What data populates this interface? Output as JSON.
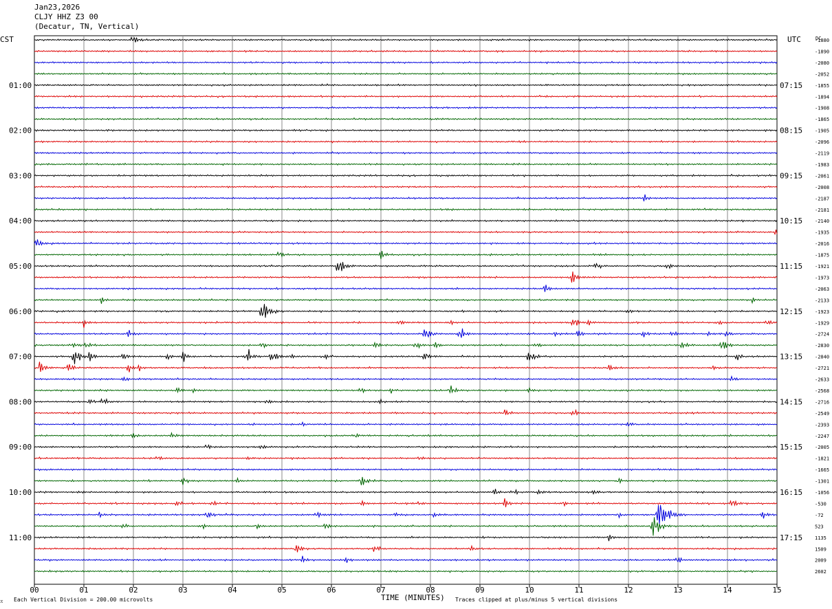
{
  "header": {
    "date": "Jan23,2026",
    "station": "CLJY HHZ Z3 00",
    "location": "(Decatur, TN, Vertical)"
  },
  "left_tz": "CST",
  "right_tz": "UTC",
  "dc_label": "DC",
  "footer": {
    "scale_note": "Each Vertical Division =  200.00 microvolts",
    "xlabel": "TIME (MINUTES)",
    "clip_note": "Traces clipped at plus/minus 5 vertical divisions"
  },
  "colors": {
    "trace": [
      "#000000",
      "#dd0000",
      "#0000dd",
      "#006600"
    ],
    "grid": "#888888"
  },
  "chart_data": {
    "type": "line",
    "title": "CLJY HHZ Z3 00",
    "xlabel": "TIME (MINUTES)",
    "xlim": [
      0,
      15
    ],
    "x_ticks": [
      "00",
      "01",
      "02",
      "03",
      "04",
      "05",
      "06",
      "07",
      "08",
      "09",
      "10",
      "11",
      "12",
      "13",
      "14",
      "15"
    ],
    "left_hour_labels": [
      "01:00",
      "02:00",
      "03:00",
      "04:00",
      "05:00",
      "06:00",
      "07:00",
      "08:00",
      "09:00",
      "10:00",
      "11:00"
    ],
    "right_hour_labels": [
      "07:15",
      "08:15",
      "09:15",
      "10:15",
      "11:15",
      "12:15",
      "13:15",
      "14:15",
      "15:15",
      "16:15",
      "17:15"
    ],
    "dc_offsets": [
      -1880,
      -1890,
      -2080,
      -2052,
      -1855,
      -1894,
      -1908,
      -1865,
      -1905,
      -2096,
      -2119,
      -1983,
      -2061,
      -2008,
      -2187,
      -2181,
      -2140,
      -1935,
      -2016,
      -1875,
      -1921,
      -1973,
      -2063,
      -2133,
      -1923,
      -1929,
      -2724,
      -2830,
      -2840,
      -2721,
      -2633,
      -2568,
      -2716,
      -2549,
      -2393,
      -2247,
      -2005,
      -1821,
      -1665,
      -1301,
      -1056,
      -530,
      -72,
      523,
      1135,
      1509,
      2009,
      2602
    ],
    "events": [
      [
        [
          2.0,
          0.5
        ]
      ],
      [],
      [],
      [],
      [],
      [],
      [],
      [],
      [],
      [],
      [],
      [],
      [],
      [],
      [
        [
          12.3,
          0.4
        ]
      ],
      [],
      [],
      [
        [
          15.0,
          0.5
        ]
      ],
      [
        [
          0.05,
          0.6
        ]
      ],
      [
        [
          4.95,
          0.4
        ],
        [
          7.0,
          0.5
        ]
      ],
      [
        [
          6.15,
          1.0
        ],
        [
          11.35,
          0.4
        ],
        [
          12.8,
          0.4
        ]
      ],
      [
        [
          10.85,
          0.8
        ]
      ],
      [
        [
          10.3,
          0.6
        ]
      ],
      [
        [
          1.35,
          0.4
        ],
        [
          14.5,
          0.3
        ]
      ],
      [
        [
          4.6,
          1.2
        ],
        [
          12.0,
          0.3
        ]
      ],
      [
        [
          1.0,
          0.4
        ],
        [
          7.4,
          0.4
        ],
        [
          8.4,
          0.3
        ],
        [
          10.9,
          0.5
        ],
        [
          11.2,
          0.4
        ],
        [
          13.8,
          0.3
        ],
        [
          14.8,
          0.4
        ]
      ],
      [
        [
          1.9,
          0.5
        ],
        [
          7.9,
          0.8
        ],
        [
          8.6,
          0.7
        ],
        [
          10.5,
          0.3
        ],
        [
          11.0,
          0.4
        ],
        [
          12.3,
          0.4
        ],
        [
          12.9,
          0.4
        ],
        [
          13.6,
          0.3
        ],
        [
          14.0,
          0.4
        ]
      ],
      [
        [
          0.8,
          0.3
        ],
        [
          1.05,
          0.4
        ],
        [
          4.6,
          0.4
        ],
        [
          6.9,
          0.4
        ],
        [
          7.7,
          0.5
        ],
        [
          8.1,
          0.4
        ],
        [
          10.15,
          0.3
        ],
        [
          13.1,
          0.6
        ],
        [
          13.9,
          0.7
        ]
      ],
      [
        [
          0.8,
          1.0
        ],
        [
          1.1,
          0.6
        ],
        [
          1.8,
          0.6
        ],
        [
          2.7,
          0.4
        ],
        [
          3.0,
          0.6
        ],
        [
          4.3,
          0.8
        ],
        [
          4.8,
          0.8
        ],
        [
          5.2,
          0.3
        ],
        [
          5.9,
          0.3
        ],
        [
          7.9,
          0.5
        ],
        [
          10.0,
          0.8
        ],
        [
          14.2,
          0.4
        ]
      ],
      [
        [
          0.1,
          0.8
        ],
        [
          0.7,
          0.5
        ],
        [
          1.9,
          0.5
        ],
        [
          2.1,
          0.3
        ],
        [
          11.6,
          0.4
        ],
        [
          13.7,
          0.3
        ]
      ],
      [
        [
          1.8,
          0.4
        ],
        [
          14.1,
          0.4
        ]
      ],
      [
        [
          2.9,
          0.4
        ],
        [
          3.2,
          0.3
        ],
        [
          6.6,
          0.3
        ],
        [
          7.2,
          0.3
        ],
        [
          8.4,
          0.6
        ],
        [
          10.0,
          0.3
        ]
      ],
      [
        [
          1.1,
          0.4
        ],
        [
          1.4,
          0.5
        ],
        [
          4.7,
          0.3
        ],
        [
          7.0,
          0.3
        ]
      ],
      [
        [
          9.5,
          0.4
        ],
        [
          10.9,
          0.4
        ]
      ],
      [
        [
          5.4,
          0.3
        ],
        [
          12.0,
          0.3
        ]
      ],
      [
        [
          2.0,
          0.3
        ],
        [
          2.8,
          0.4
        ],
        [
          6.5,
          0.2
        ]
      ],
      [
        [
          3.5,
          0.3
        ],
        [
          4.6,
          0.3
        ]
      ],
      [
        [
          2.5,
          0.3
        ],
        [
          4.3,
          0.2
        ],
        [
          7.8,
          0.3
        ]
      ],
      [],
      [
        [
          3.0,
          0.5
        ],
        [
          4.1,
          0.3
        ],
        [
          6.6,
          0.8
        ],
        [
          11.8,
          0.3
        ]
      ],
      [
        [
          9.3,
          0.5
        ],
        [
          9.7,
          0.3
        ],
        [
          10.2,
          0.4
        ],
        [
          11.3,
          0.3
        ]
      ],
      [
        [
          2.9,
          0.3
        ],
        [
          3.6,
          0.3
        ],
        [
          6.6,
          0.4
        ],
        [
          7.8,
          0.3
        ],
        [
          9.5,
          0.5
        ],
        [
          10.7,
          0.3
        ],
        [
          14.1,
          0.5
        ]
      ],
      [
        [
          1.3,
          0.4
        ],
        [
          3.5,
          0.5
        ],
        [
          5.7,
          0.5
        ],
        [
          7.3,
          0.3
        ],
        [
          8.1,
          0.3
        ],
        [
          11.8,
          0.3
        ],
        [
          12.6,
          2.0
        ],
        [
          14.7,
          0.5
        ]
      ],
      [
        [
          1.8,
          0.3
        ],
        [
          3.4,
          0.3
        ],
        [
          4.5,
          0.3
        ],
        [
          5.9,
          0.4
        ],
        [
          12.5,
          1.2
        ]
      ],
      [
        [
          11.6,
          0.4
        ]
      ],
      [
        [
          5.3,
          0.6
        ],
        [
          6.9,
          0.4
        ],
        [
          8.8,
          0.4
        ]
      ],
      [
        [
          5.4,
          0.4
        ],
        [
          6.3,
          0.3
        ],
        [
          13.0,
          0.4
        ]
      ]
    ]
  }
}
